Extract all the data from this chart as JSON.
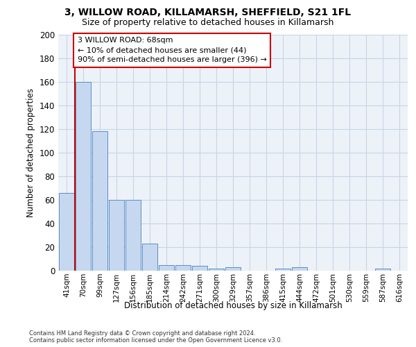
{
  "title1": "3, WILLOW ROAD, KILLAMARSH, SHEFFIELD, S21 1FL",
  "title2": "Size of property relative to detached houses in Killamarsh",
  "xlabel": "Distribution of detached houses by size in Killamarsh",
  "ylabel": "Number of detached properties",
  "categories": [
    "41sqm",
    "70sqm",
    "99sqm",
    "127sqm",
    "156sqm",
    "185sqm",
    "214sqm",
    "242sqm",
    "271sqm",
    "300sqm",
    "329sqm",
    "357sqm",
    "386sqm",
    "415sqm",
    "444sqm",
    "472sqm",
    "501sqm",
    "530sqm",
    "559sqm",
    "587sqm",
    "616sqm"
  ],
  "values": [
    66,
    160,
    118,
    60,
    60,
    23,
    5,
    5,
    4,
    2,
    3,
    0,
    0,
    2,
    3,
    0,
    0,
    0,
    0,
    2,
    0
  ],
  "bar_color": "#c5d8f0",
  "bar_edge_color": "#5b8ec4",
  "grid_color": "#c8d4e4",
  "annotation_line1": "3 WILLOW ROAD: 68sqm",
  "annotation_line2": "← 10% of detached houses are smaller (44)",
  "annotation_line3": "90% of semi-detached houses are larger (396) →",
  "vline_color": "#cc0000",
  "ann_edge_color": "#cc0000",
  "ylim": [
    0,
    200
  ],
  "yticks": [
    0,
    20,
    40,
    60,
    80,
    100,
    120,
    140,
    160,
    180,
    200
  ],
  "background_color": "#edf2f9",
  "footer1": "Contains HM Land Registry data © Crown copyright and database right 2024.",
  "footer2": "Contains public sector information licensed under the Open Government Licence v3.0."
}
